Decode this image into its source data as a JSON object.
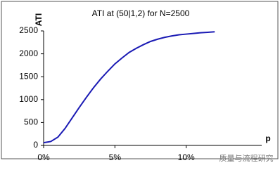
{
  "chart_data": {
    "type": "line",
    "title": "ATI at (50|1,2) for N=2500",
    "y_label": "ATI",
    "x_label": "p",
    "x": [
      0,
      0.5,
      1,
      1.5,
      2,
      2.5,
      3,
      3.5,
      4,
      4.5,
      5,
      5.5,
      6,
      6.5,
      7,
      7.5,
      8,
      8.5,
      9,
      9.5,
      10,
      10.5,
      11,
      11.5,
      12
    ],
    "series": [
      {
        "name": "ATI",
        "color": "#1a1ab4",
        "values": [
          60,
          85,
          180,
          370,
          600,
          830,
          1050,
          1260,
          1450,
          1620,
          1780,
          1910,
          2030,
          2120,
          2200,
          2270,
          2320,
          2360,
          2390,
          2415,
          2430,
          2445,
          2460,
          2470,
          2480
        ]
      }
    ],
    "xlim": [
      0,
      15
    ],
    "xticks": [
      {
        "value": 0,
        "label": "0%"
      },
      {
        "value": 5,
        "label": "5%"
      },
      {
        "value": 10,
        "label": "10%"
      }
    ],
    "ylim": [
      0,
      2500
    ],
    "yticks": [
      0,
      500,
      1000,
      1500,
      2000,
      2500
    ],
    "grid": false,
    "watermark": "质量与流程研究"
  }
}
